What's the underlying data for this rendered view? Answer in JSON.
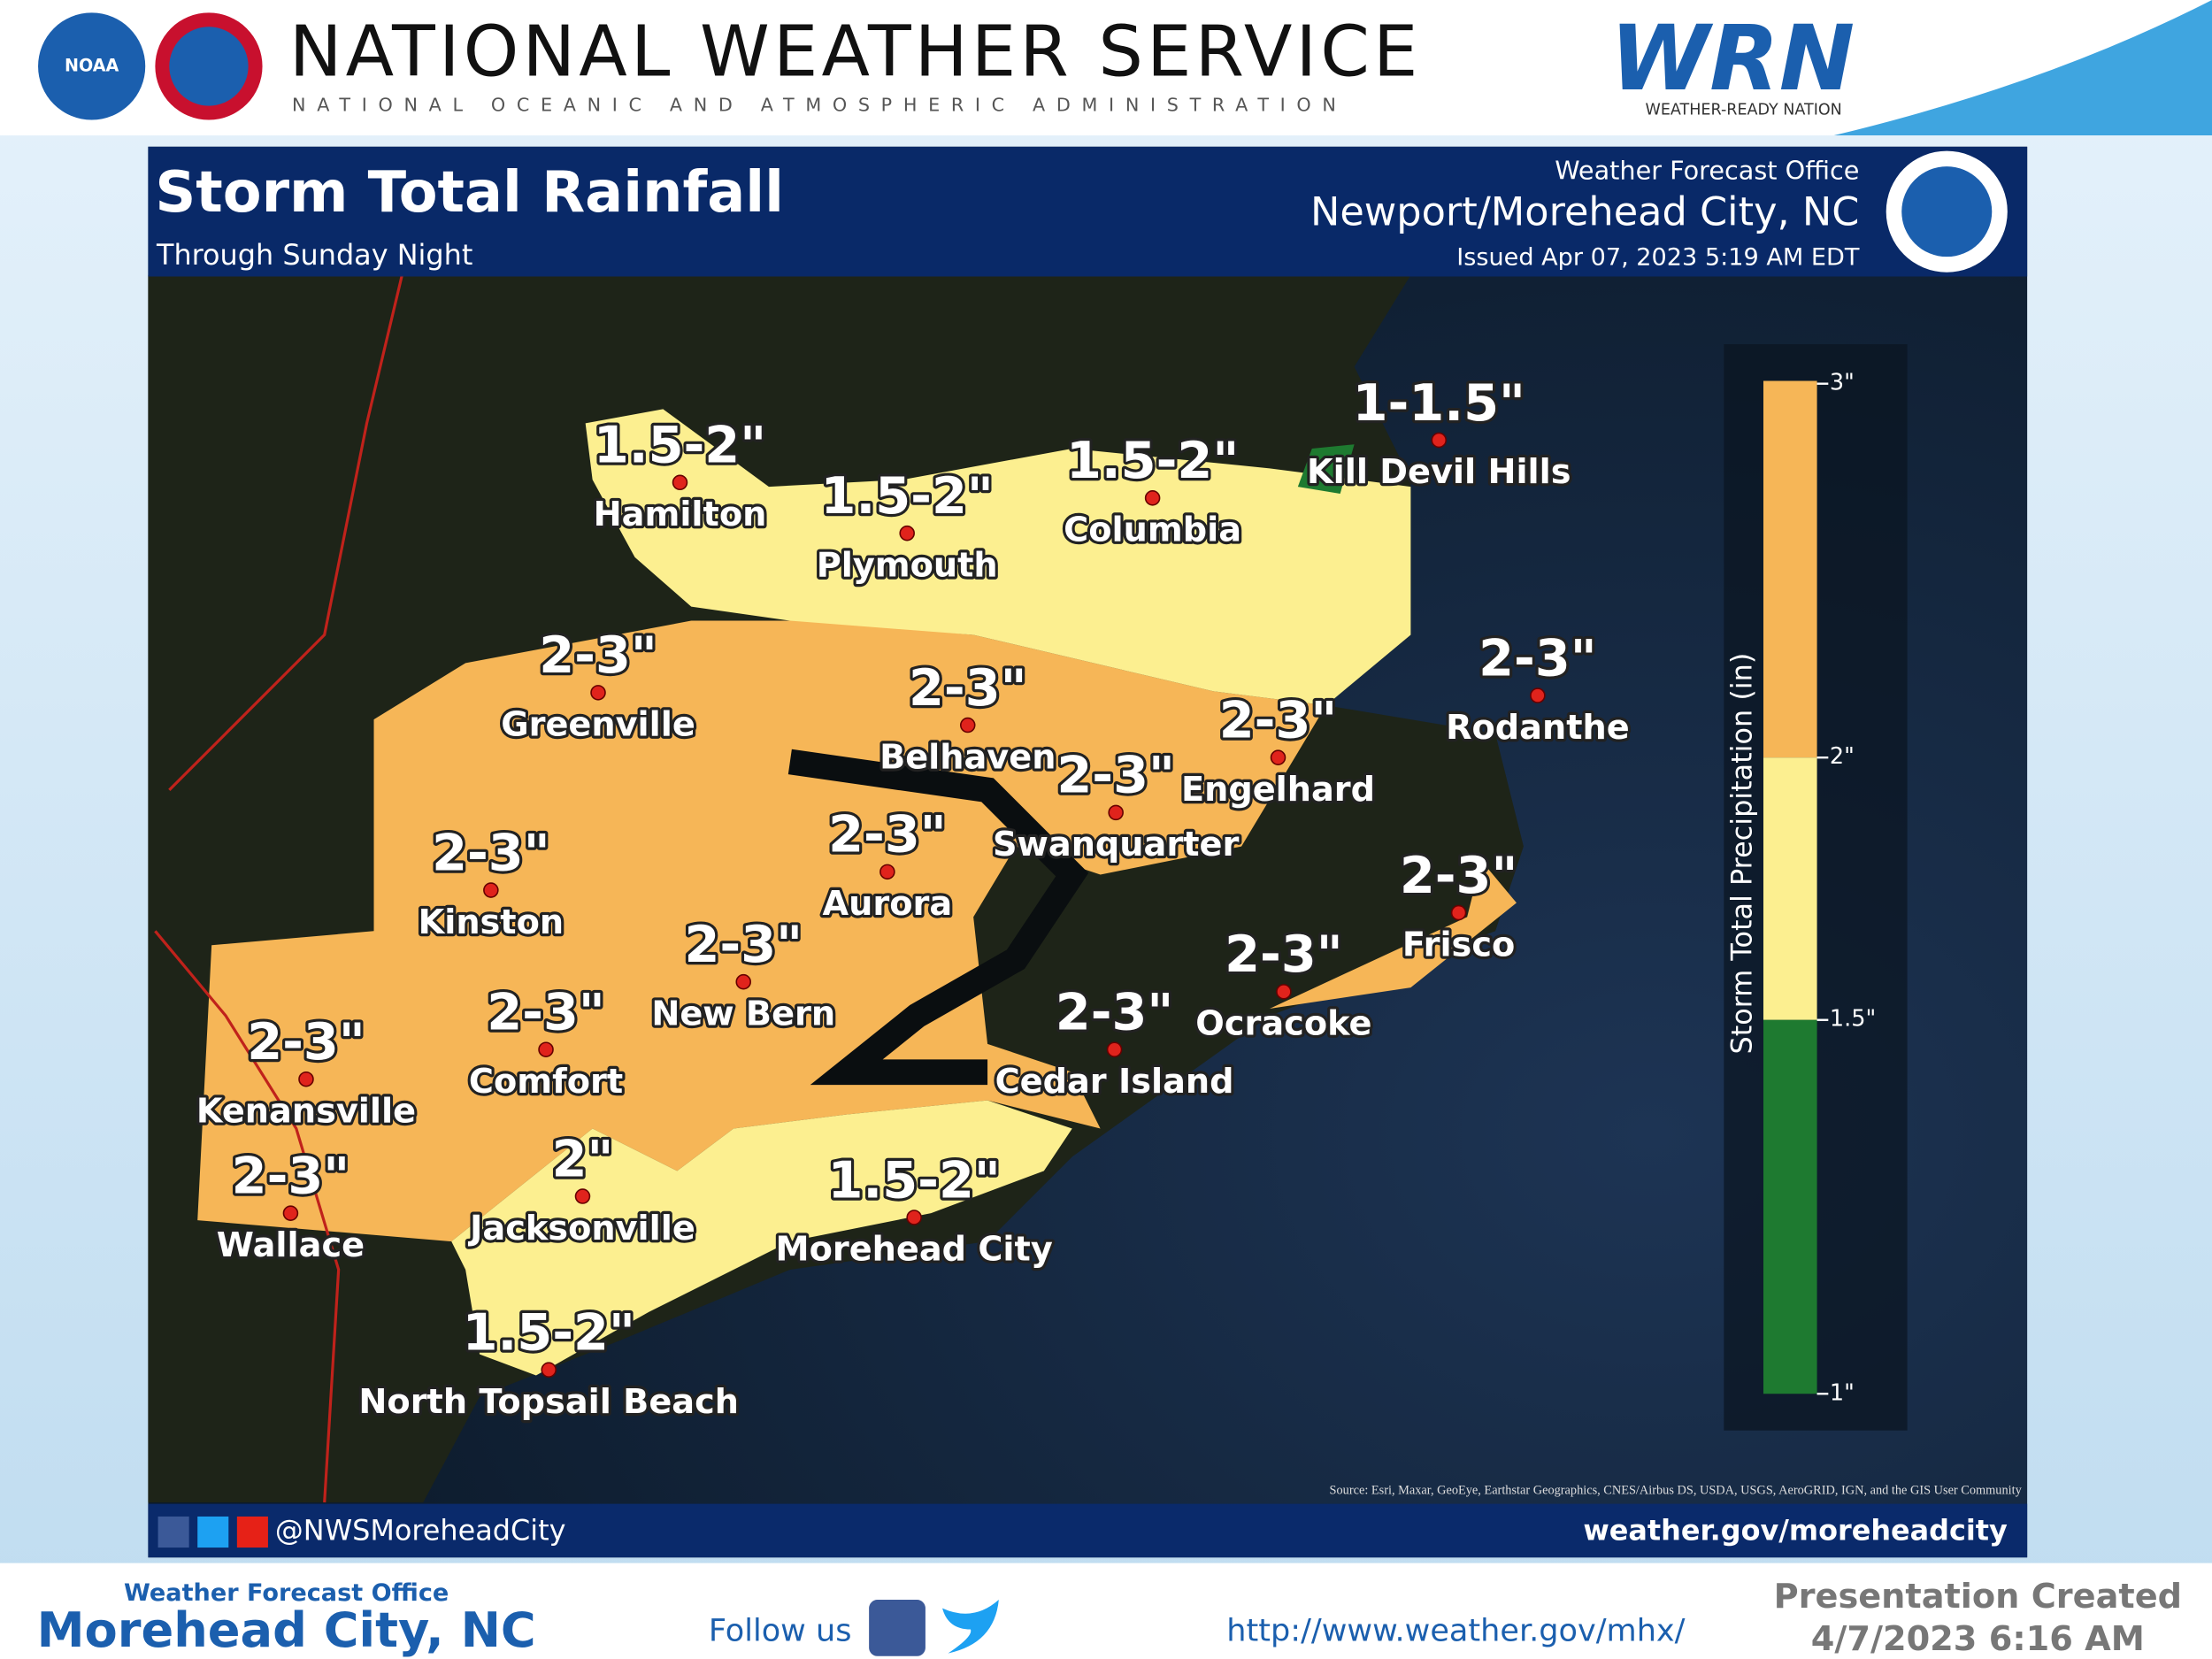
{
  "header": {
    "logo_text": "NOAA",
    "title": "NATIONAL WEATHER SERVICE",
    "subtitle": "NATIONAL OCEANIC AND ATMOSPHERIC ADMINISTRATION",
    "wrn": "WRN",
    "wrn_caption": "WEATHER-READY NATION"
  },
  "graphic": {
    "title": "Storm Total Rainfall",
    "subtitle": "Through Sunday Night",
    "office_caption": "Weather Forecast Office",
    "office": "Newport/Morehead City, NC",
    "issued": "Issued Apr 07, 2023 5:19 AM EDT",
    "source": "Source: Esri, Maxar, GeoEye, Earthstar Geographics, CNES/Airbus DS, USDA, USGS, AeroGRID, IGN, and the GIS User Community",
    "social": "@NWSMoreheadCity",
    "website": "weather.gov/moreheadcity"
  },
  "locations": [
    {
      "name": "Hamilton",
      "amount": "1.5-2\""
    },
    {
      "name": "Plymouth",
      "amount": "1.5-2\""
    },
    {
      "name": "Columbia",
      "amount": "1.5-2\""
    },
    {
      "name": "Kill Devil Hills",
      "amount": "1-1.5\""
    },
    {
      "name": "Greenville",
      "amount": "2-3\""
    },
    {
      "name": "Belhaven",
      "amount": "2-3\""
    },
    {
      "name": "Engelhard",
      "amount": "2-3\""
    },
    {
      "name": "Rodanthe",
      "amount": "2-3\""
    },
    {
      "name": "Swanquarter",
      "amount": "2-3\""
    },
    {
      "name": "Aurora",
      "amount": "2-3\""
    },
    {
      "name": "Kinston",
      "amount": "2-3\""
    },
    {
      "name": "Frisco",
      "amount": "2-3\""
    },
    {
      "name": "New Bern",
      "amount": "2-3\""
    },
    {
      "name": "Ocracoke",
      "amount": "2-3\""
    },
    {
      "name": "Comfort",
      "amount": "2-3\""
    },
    {
      "name": "Cedar Island",
      "amount": "2-3\""
    },
    {
      "name": "Kenansville",
      "amount": "2-3\""
    },
    {
      "name": "Wallace",
      "amount": "2-3\""
    },
    {
      "name": "Jacksonville",
      "amount": "2\""
    },
    {
      "name": "Morehead City",
      "amount": "1.5-2\""
    },
    {
      "name": "North Topsail Beach",
      "amount": "1.5-2\""
    }
  ],
  "legend": {
    "title": "Storm Total Precipitation (in)",
    "ticks": [
      "3\"",
      "2\"",
      "1.5\"",
      "1\""
    ]
  },
  "footer": {
    "office_caption": "Weather Forecast Office",
    "office": "Morehead City, NC",
    "follow": "Follow us",
    "url": "http://www.weather.gov/mhx/",
    "created_caption": "Presentation Created",
    "created": "4/7/2023 6:16 AM"
  }
}
